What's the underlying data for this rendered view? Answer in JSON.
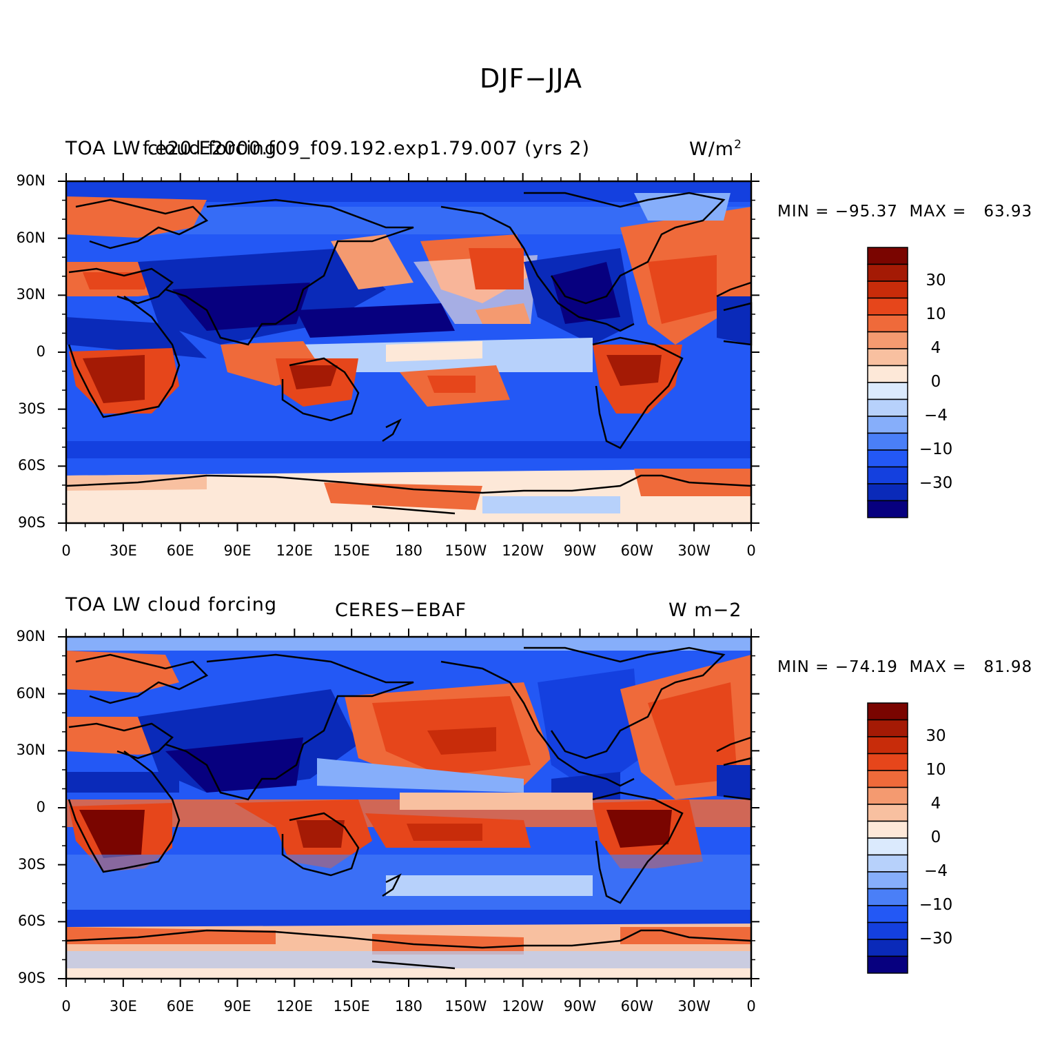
{
  "figure_title": "DJF−JJA",
  "colors": {
    "levels": [
      "#07007f",
      "#0a2ab9",
      "#1440df",
      "#2358f5",
      "#4a7ff7",
      "#86aefa",
      "#b7d1fb",
      "#dbeafd",
      "#fde8d8",
      "#f8c0a0",
      "#f49a70",
      "#ef6a3a",
      "#e6461b",
      "#c82c0a",
      "#a41a05",
      "#7a0500"
    ],
    "coast": "#000000",
    "background": "#ffffff"
  },
  "x_ticks": [
    "0",
    "30E",
    "60E",
    "90E",
    "120E",
    "150E",
    "180",
    "150W",
    "120W",
    "90W",
    "60W",
    "30W",
    "0"
  ],
  "y_ticks": [
    "90N",
    "60N",
    "30N",
    "0",
    "30S",
    "60S",
    "90S"
  ],
  "colorbar_labels": [
    "30",
    "10",
    "4",
    "0",
    "−4",
    "−10",
    "−30"
  ],
  "panels": [
    {
      "left_title": "TOA LW cloud forcing",
      "center_title": "f.e20.E2000.f09_f09.192.exp1.79.007 (yrs 2)",
      "right_title": "W/m",
      "right_title_sup": "2",
      "min_label": "MIN = ",
      "min_value": "−95.37",
      "max_label": "MAX = ",
      "max_value": "63.93"
    },
    {
      "left_title": "TOA LW cloud forcing",
      "center_title": "CERES−EBAF",
      "right_title": "W m−2",
      "right_title_sup": "",
      "min_label": "MIN = ",
      "min_value": "−74.19",
      "max_label": "MAX = ",
      "max_value": "81.98"
    }
  ]
}
